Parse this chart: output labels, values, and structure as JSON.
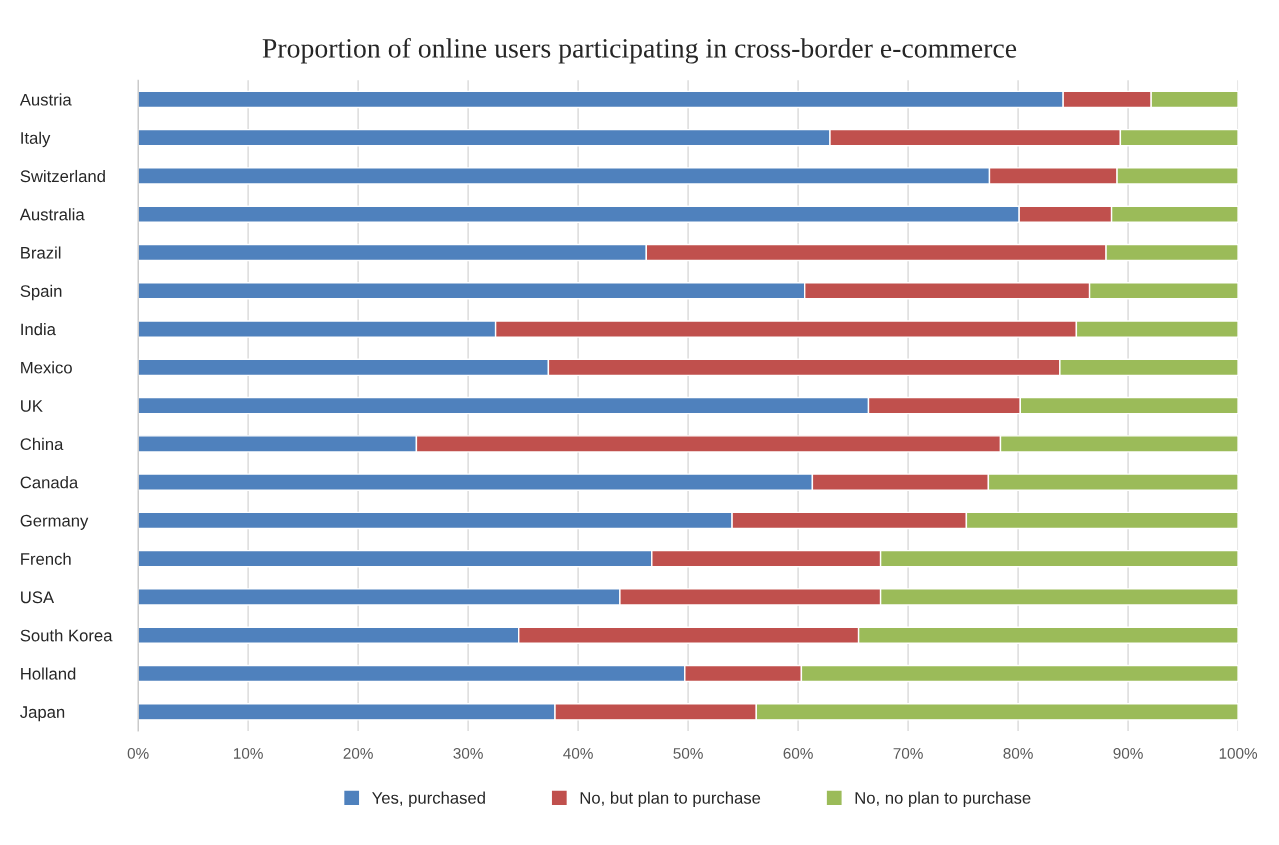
{
  "chart_data": {
    "type": "bar",
    "orientation": "horizontal",
    "stacked": true,
    "title": "Proportion of online users participating in cross-border e-commerce",
    "categories": [
      "Austria",
      "Italy",
      "Switzerland",
      "Australia",
      "Brazil",
      "Spain",
      "India",
      "Mexico",
      "UK",
      "China",
      "Canada",
      "Germany",
      "French",
      "USA",
      "South Korea",
      "Holland",
      "Japan"
    ],
    "series": [
      {
        "name": "Yes, purchased",
        "color": "#4f81bd",
        "values": [
          84.1,
          62.9,
          77.4,
          80.1,
          46.2,
          60.6,
          32.5,
          37.3,
          66.4,
          25.3,
          61.3,
          54.0,
          46.7,
          43.8,
          34.6,
          49.7,
          37.9
        ]
      },
      {
        "name": "No, but plan to purchase",
        "color": "#c0504d",
        "values": [
          8.0,
          26.4,
          11.6,
          8.4,
          41.8,
          25.9,
          52.8,
          46.5,
          13.8,
          53.1,
          16.0,
          21.3,
          20.8,
          23.7,
          30.9,
          10.6,
          18.3
        ]
      },
      {
        "name": "No, no plan to purchase",
        "color": "#9bbb59",
        "values": [
          7.9,
          10.7,
          11.0,
          11.5,
          12.0,
          13.5,
          14.7,
          16.2,
          19.8,
          21.6,
          22.7,
          24.7,
          32.5,
          32.5,
          34.5,
          39.7,
          43.8
        ]
      }
    ],
    "xlim": [
      0,
      100
    ],
    "xticks": [
      {
        "value": 0,
        "label": "0%"
      },
      {
        "value": 10,
        "label": "10%"
      },
      {
        "value": 20,
        "label": "20%"
      },
      {
        "value": 30,
        "label": "30%"
      },
      {
        "value": 40,
        "label": "40%"
      },
      {
        "value": 50,
        "label": "50%"
      },
      {
        "value": 60,
        "label": "60%"
      },
      {
        "value": 70,
        "label": "70%"
      },
      {
        "value": 80,
        "label": "80%"
      },
      {
        "value": 90,
        "label": "90%"
      },
      {
        "value": 100,
        "label": "100%"
      }
    ],
    "grid": "x",
    "legend": "bottom"
  }
}
